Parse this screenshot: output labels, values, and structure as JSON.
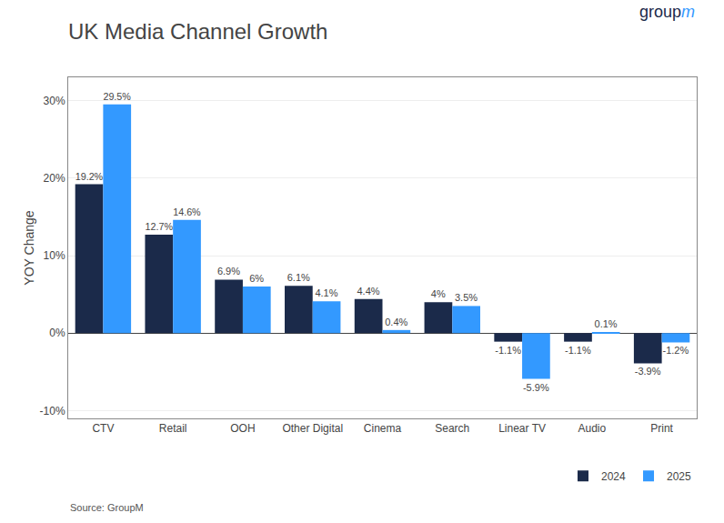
{
  "chart_data": {
    "type": "bar",
    "title": "UK Media Channel Growth",
    "ylabel": "YOY Change",
    "categories": [
      "CTV",
      "Retail",
      "OOH",
      "Other Digital",
      "Cinema",
      "Search",
      "Linear TV",
      "Audio",
      "Print"
    ],
    "series": [
      {
        "name": "2024",
        "color": "#1B2A4A",
        "values": [
          19.2,
          12.7,
          6.9,
          6.1,
          4.4,
          4.0,
          -1.1,
          -1.1,
          -3.9
        ],
        "value_labels": [
          "19.2%",
          "12.7%",
          "6.9%",
          "6.1%",
          "4.4%",
          "4%",
          "-1.1%",
          "-1.1%",
          "-3.9%"
        ]
      },
      {
        "name": "2025",
        "color": "#3399FF",
        "values": [
          29.5,
          14.6,
          6.0,
          4.1,
          0.4,
          3.5,
          -5.9,
          0.1,
          -1.2
        ],
        "value_labels": [
          "29.5%",
          "14.6%",
          "6%",
          "4.1%",
          "0.4%",
          "3.5%",
          "-5.9%",
          "0.1%",
          "-1.2%"
        ]
      }
    ],
    "ylim": [
      -11,
      33
    ],
    "yticks": [
      {
        "value": -10,
        "label": "-10%"
      },
      {
        "value": 0,
        "label": "0%"
      },
      {
        "value": 10,
        "label": "10%"
      },
      {
        "value": 20,
        "label": "20%"
      },
      {
        "value": 30,
        "label": "30%"
      }
    ],
    "grid": true,
    "legend": "lower right",
    "data_labels": true,
    "annotations": [
      {
        "text": "Source: GroupM"
      },
      {
        "text": "group",
        "color": "#1B2A4A"
      },
      {
        "text": "m",
        "color": "#3399FF"
      }
    ]
  }
}
